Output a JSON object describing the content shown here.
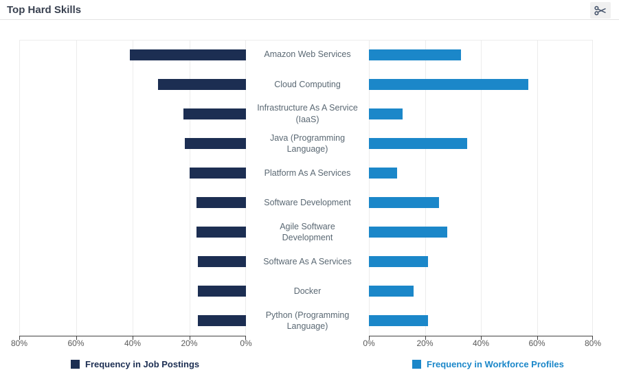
{
  "header": {
    "title": "Top Hard Skills"
  },
  "toolbar": {
    "snip_icon": "scissors"
  },
  "chart_data": {
    "type": "bar",
    "variant": "tornado-horizontal",
    "title": "Top Hard Skills",
    "categories": [
      "Amazon Web Services",
      "Cloud Computing",
      "Infrastructure As A Service (IaaS)",
      "Java (Programming Language)",
      "Platform As A Services",
      "Software Development",
      "Agile Software Development",
      "Software As A Services",
      "Docker",
      "Python (Programming Language)"
    ],
    "categories_display": [
      "Amazon Web Services",
      "Cloud Computing",
      "Infrastructure As A Service\n(IaaS)",
      "Java (Programming\nLanguage)",
      "Platform As A Services",
      "Software Development",
      "Agile Software\nDevelopment",
      "Software As A Services",
      "Docker",
      "Python (Programming\nLanguage)"
    ],
    "series": [
      {
        "name": "Frequency in Job Postings",
        "side": "left",
        "color": "#1c2e52",
        "values_percent": [
          41,
          31,
          22,
          21.5,
          20,
          17.5,
          17.5,
          17,
          17,
          17
        ]
      },
      {
        "name": "Frequency in Workforce Profiles",
        "side": "right",
        "color": "#1b87c9",
        "values_percent": [
          33,
          57,
          12,
          35,
          10,
          25,
          28,
          21,
          16,
          21
        ]
      }
    ],
    "xlim": [
      0,
      80
    ],
    "x_tick_labels_left": [
      "80%",
      "60%",
      "40%",
      "20%",
      "0%"
    ],
    "x_tick_labels_right": [
      "0%",
      "20%",
      "40%",
      "60%",
      "80%"
    ],
    "grid": true,
    "grid_color": "#ececec",
    "axis_color": "#424242",
    "label_color": "#5a6873",
    "legend_position": "bottom"
  }
}
